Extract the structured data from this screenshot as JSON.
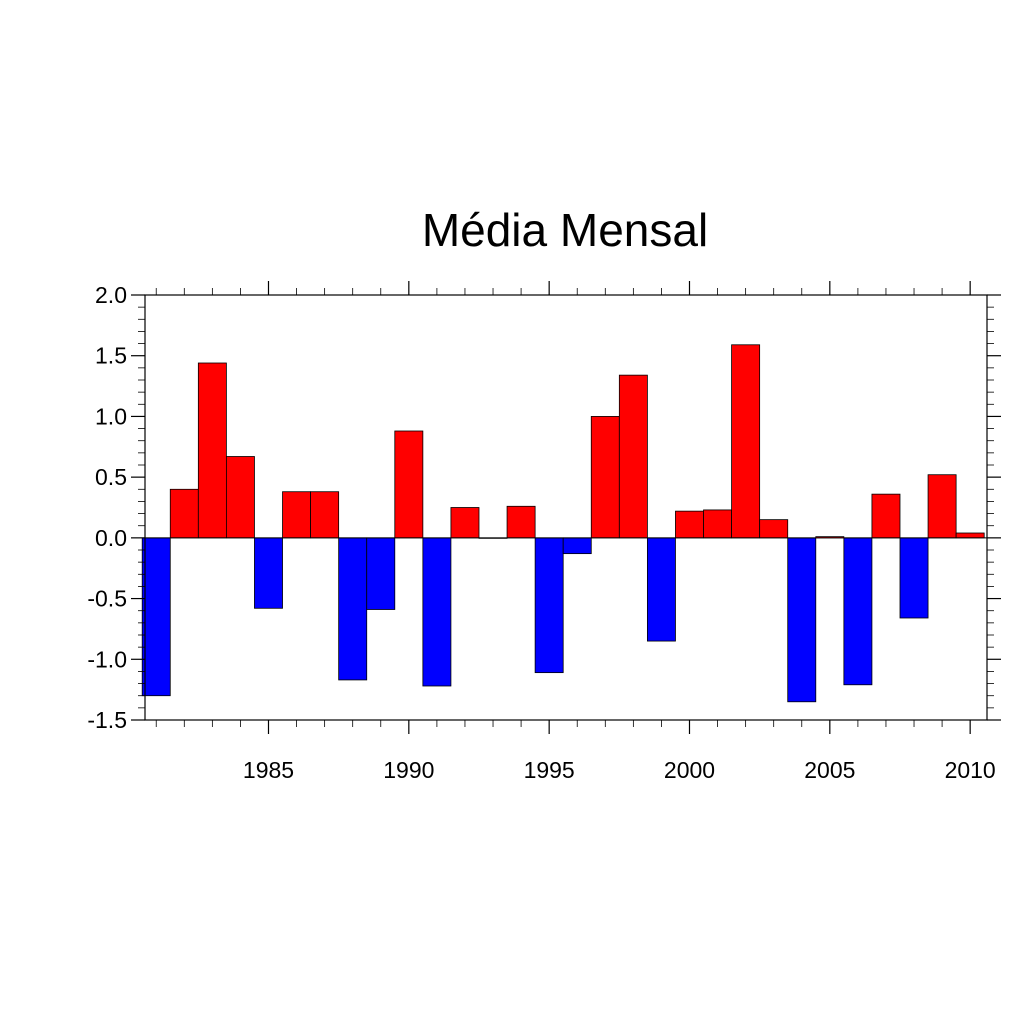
{
  "chart_data": {
    "type": "bar",
    "title": "Média Mensal",
    "xlabel": "",
    "ylabel": "",
    "x": [
      1981,
      1982,
      1983,
      1984,
      1985,
      1986,
      1987,
      1988,
      1989,
      1990,
      1991,
      1992,
      1993,
      1994,
      1995,
      1996,
      1997,
      1998,
      1999,
      2000,
      2001,
      2002,
      2003,
      2004,
      2005,
      2006,
      2007,
      2008,
      2009,
      2010
    ],
    "values": [
      -1.3,
      0.4,
      1.44,
      0.67,
      -0.58,
      0.38,
      0.38,
      -1.17,
      -0.59,
      0.88,
      -1.22,
      0.25,
      0.0,
      0.26,
      -1.11,
      -0.13,
      1.0,
      1.34,
      -0.85,
      0.22,
      0.23,
      1.59,
      0.15,
      -1.35,
      0.01,
      -1.21,
      0.36,
      -0.66,
      0.52,
      0.04
    ],
    "xlim": [
      1980.6,
      2010.6
    ],
    "ylim": [
      -1.5,
      2.0
    ],
    "x_ticks": [
      1985,
      1990,
      1995,
      2000,
      2005,
      2010
    ],
    "x_tick_labels": [
      "1985",
      "1990",
      "1995",
      "2000",
      "2005",
      "2010"
    ],
    "y_ticks": [
      -1.5,
      -1.0,
      -0.5,
      0.0,
      0.5,
      1.0,
      1.5,
      2.0
    ],
    "y_tick_labels": [
      "-1.5",
      "-1.0",
      "-0.5",
      "0.0",
      "0.5",
      "1.0",
      "1.5",
      "2.0"
    ],
    "grid": false,
    "positive_color": "#ff0000",
    "negative_color": "#0000ff"
  }
}
